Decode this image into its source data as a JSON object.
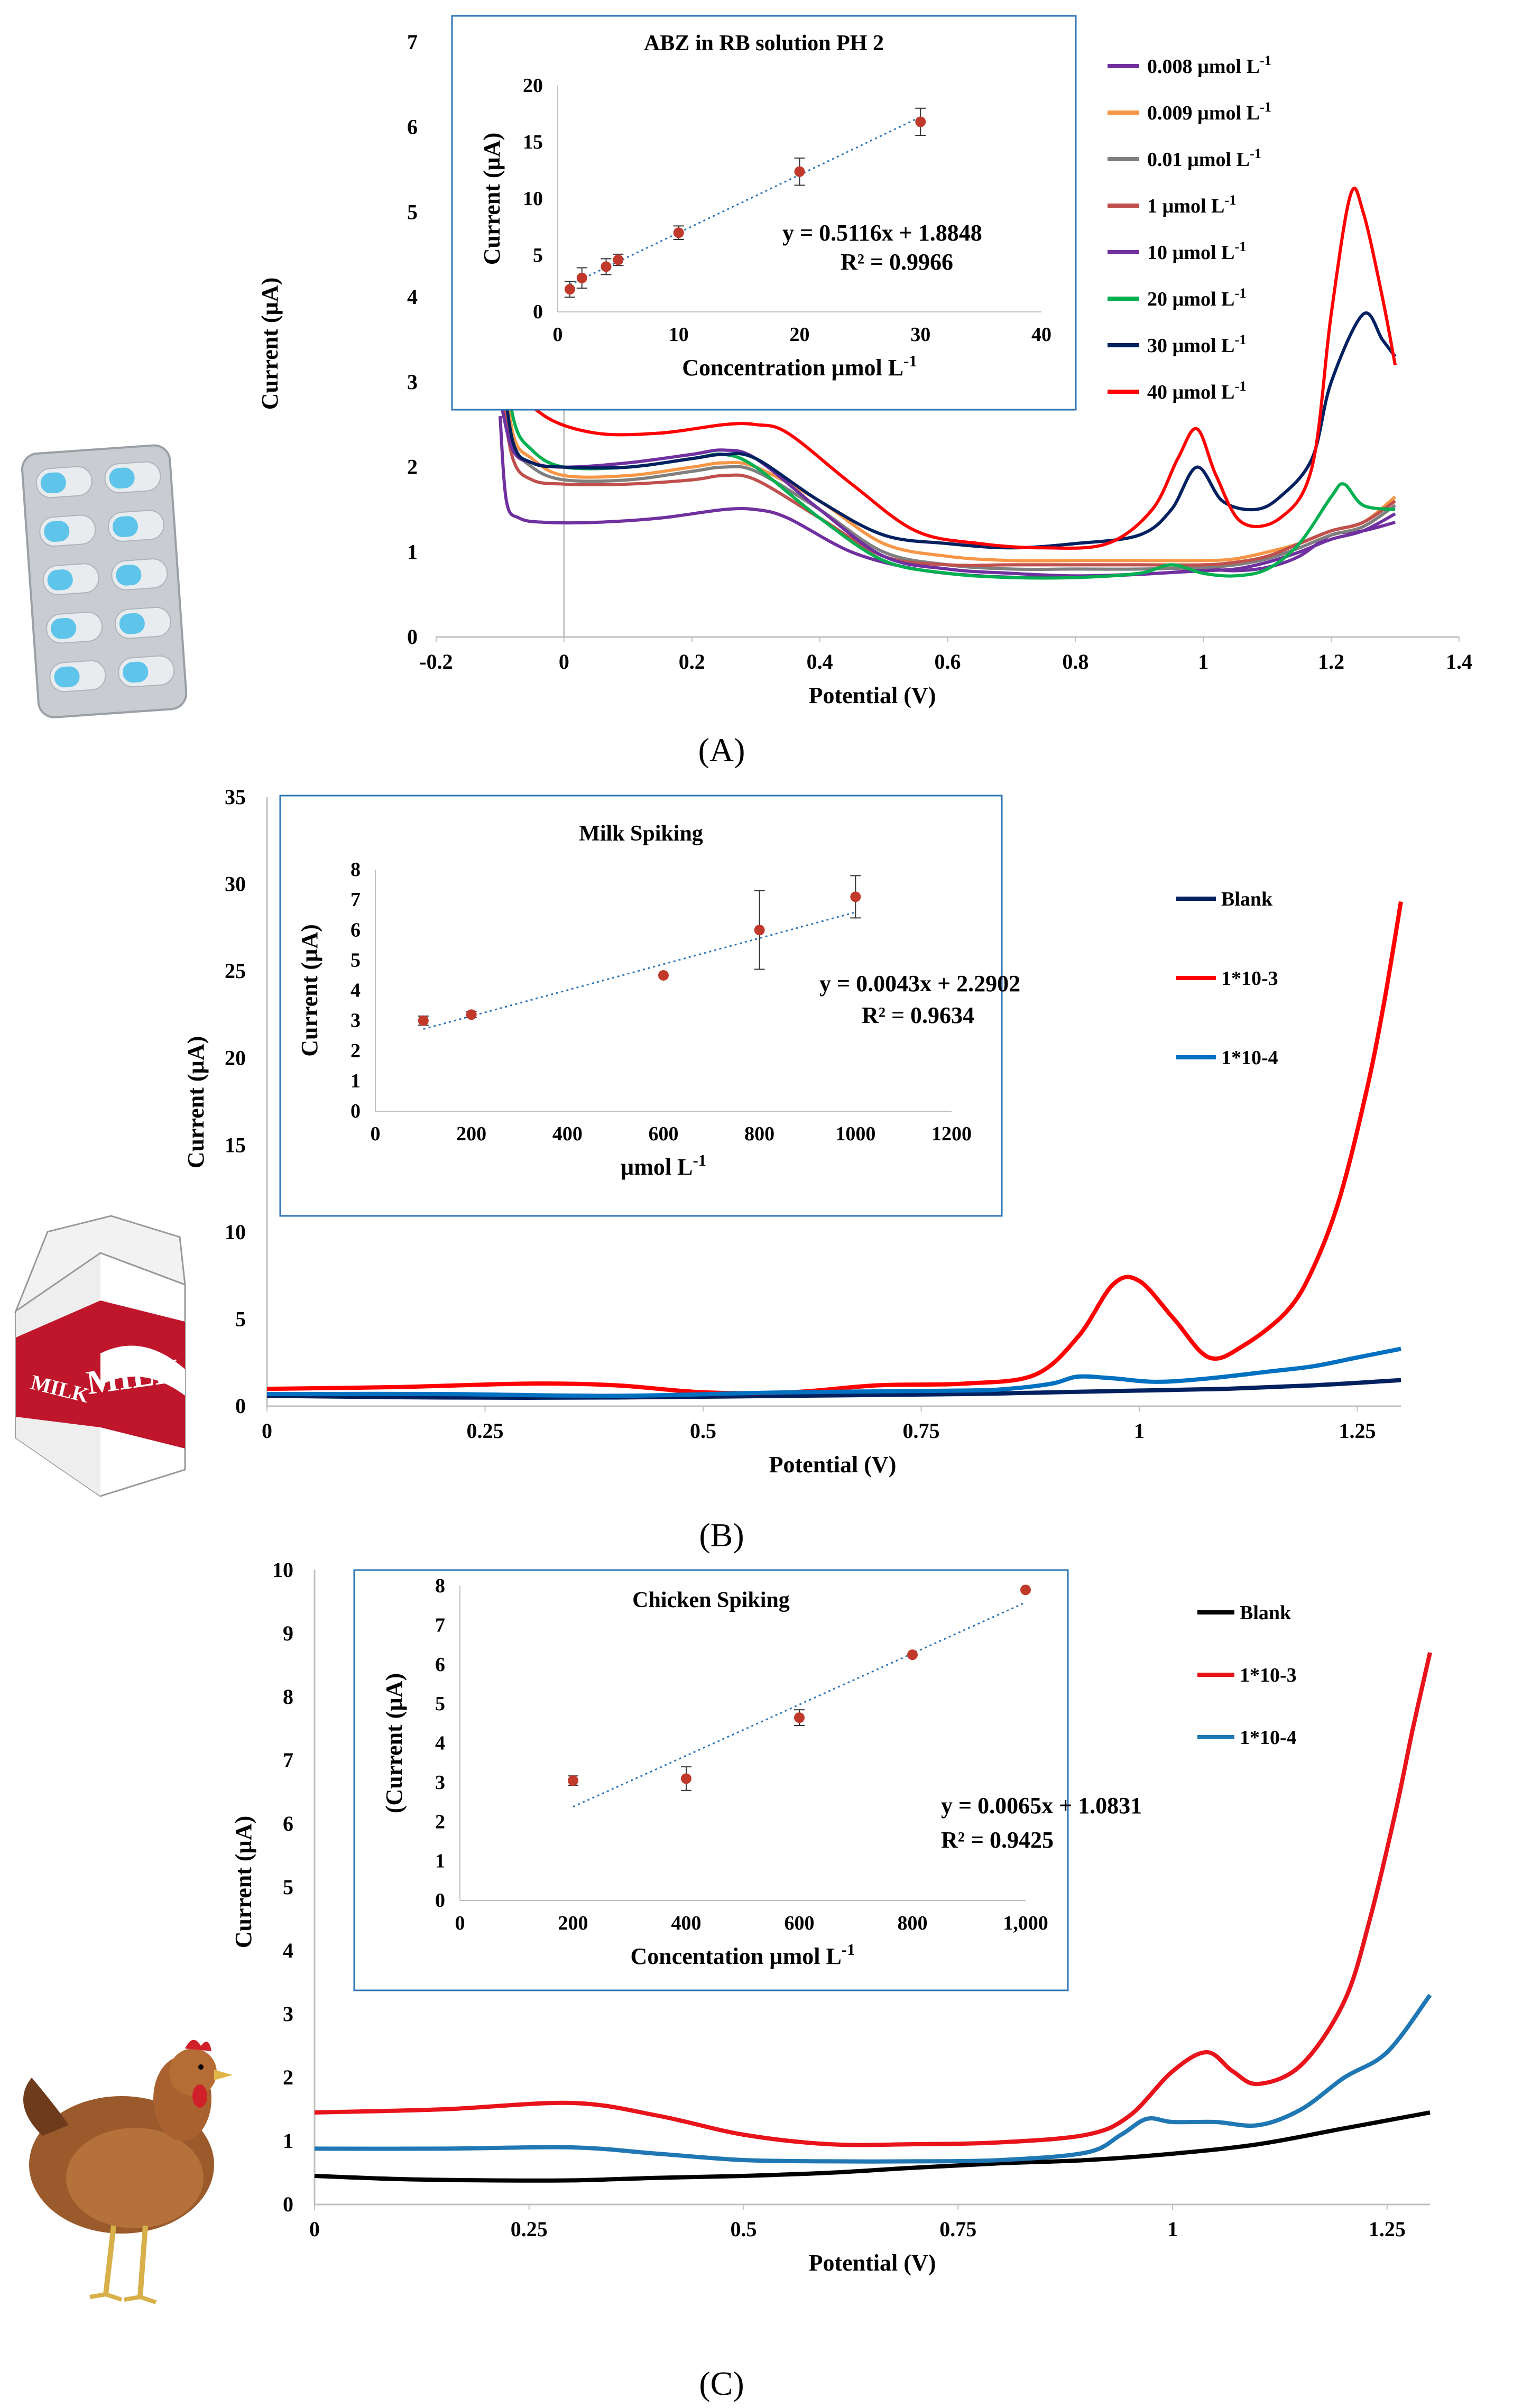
{
  "figure": {
    "captions": [
      "(A)",
      "(B)",
      "(C)"
    ]
  },
  "chart_data": [
    {
      "type": "line",
      "panel": "(A)",
      "xlabel": "Potential (V)",
      "ylabel": "Current (µA)",
      "xlim": [
        -0.2,
        1.4
      ],
      "ylim": [
        0,
        7
      ],
      "xticks": [
        "-0.2",
        "0",
        "0.2",
        "0.4",
        "0.6",
        "0.8",
        "1",
        "1.2",
        "1.4"
      ],
      "yticks": [
        "0",
        "1",
        "2",
        "3",
        "4",
        "5",
        "6",
        "7"
      ],
      "legend_position": "right",
      "series": [
        {
          "name": "0.008 µmol L-1",
          "color": "#7030a0",
          "x": [
            -0.1,
            -0.09,
            -0.07,
            -0.03,
            0.05,
            0.15,
            0.25,
            0.3,
            0.35,
            0.45,
            0.55,
            0.65,
            0.75,
            0.85,
            0.95,
            1.0,
            1.05,
            1.1,
            1.15,
            1.2,
            1.25,
            1.3
          ],
          "y": [
            2.6,
            1.6,
            1.4,
            1.35,
            1.35,
            1.4,
            1.5,
            1.5,
            1.4,
            1.0,
            0.8,
            0.72,
            0.7,
            0.72,
            0.76,
            0.8,
            0.78,
            0.82,
            0.95,
            1.2,
            1.25,
            1.35
          ]
        },
        {
          "name": "0.009 µmol L-1",
          "color": "#f79646",
          "x": [
            -0.1,
            -0.08,
            -0.05,
            0,
            0.1,
            0.2,
            0.25,
            0.3,
            0.4,
            0.5,
            0.6,
            0.7,
            0.8,
            0.9,
            1.0,
            1.05,
            1.1,
            1.15,
            1.2,
            1.25,
            1.3
          ],
          "y": [
            3.6,
            2.4,
            2.1,
            1.9,
            1.9,
            2.0,
            2.05,
            2.0,
            1.6,
            1.1,
            0.95,
            0.9,
            0.9,
            0.9,
            0.9,
            0.92,
            1.0,
            1.1,
            1.25,
            1.35,
            1.65
          ]
        },
        {
          "name": "0.01 µmol L-1",
          "color": "#7f7f7f",
          "x": [
            -0.1,
            -0.08,
            -0.05,
            0,
            0.1,
            0.2,
            0.25,
            0.3,
            0.4,
            0.5,
            0.6,
            0.7,
            0.8,
            0.9,
            1.0,
            1.05,
            1.1,
            1.15,
            1.2,
            1.25,
            1.3
          ],
          "y": [
            3.2,
            2.3,
            2.0,
            1.85,
            1.85,
            1.95,
            2.0,
            1.95,
            1.5,
            1.0,
            0.85,
            0.8,
            0.8,
            0.8,
            0.82,
            0.85,
            0.92,
            1.05,
            1.2,
            1.3,
            1.55
          ]
        },
        {
          "name": "1 µmol L-1",
          "color": "#c0504d",
          "x": [
            -0.1,
            -0.08,
            -0.05,
            0,
            0.1,
            0.2,
            0.25,
            0.3,
            0.4,
            0.5,
            0.6,
            0.7,
            0.8,
            0.9,
            1.0,
            1.05,
            1.1,
            1.15,
            1.2,
            1.25,
            1.3
          ],
          "y": [
            3.0,
            2.1,
            1.85,
            1.8,
            1.8,
            1.85,
            1.9,
            1.85,
            1.4,
            0.95,
            0.85,
            0.85,
            0.85,
            0.85,
            0.85,
            0.88,
            0.95,
            1.1,
            1.25,
            1.35,
            1.6
          ]
        },
        {
          "name": "10 µmol L-1",
          "color": "#7030a0",
          "x": [
            -0.1,
            -0.08,
            -0.05,
            0,
            0.1,
            0.2,
            0.25,
            0.3,
            0.4,
            0.5,
            0.6,
            0.7,
            0.8,
            0.9,
            1.0,
            1.05,
            1.1,
            1.15,
            1.2,
            1.25,
            1.3
          ],
          "y": [
            2.8,
            2.2,
            2.05,
            2.0,
            2.05,
            2.15,
            2.2,
            2.1,
            1.5,
            0.95,
            0.8,
            0.75,
            0.72,
            0.74,
            0.78,
            0.8,
            0.88,
            1.0,
            1.15,
            1.25,
            1.45
          ]
        },
        {
          "name": "20 µmol L-1",
          "color": "#00b050",
          "x": [
            -0.1,
            -0.08,
            -0.05,
            0,
            0.1,
            0.2,
            0.25,
            0.3,
            0.4,
            0.5,
            0.6,
            0.7,
            0.8,
            0.9,
            0.95,
            1.0,
            1.05,
            1.1,
            1.15,
            1.2,
            1.22,
            1.25,
            1.3
          ],
          "y": [
            3.9,
            2.6,
            2.2,
            2.0,
            2.0,
            2.1,
            2.15,
            2.0,
            1.4,
            0.9,
            0.75,
            0.7,
            0.7,
            0.75,
            0.85,
            0.75,
            0.72,
            0.8,
            1.1,
            1.65,
            1.8,
            1.55,
            1.5
          ]
        },
        {
          "name": "30 µmol L-1",
          "color": "#002060",
          "x": [
            -0.1,
            -0.08,
            -0.05,
            0,
            0.1,
            0.2,
            0.25,
            0.3,
            0.4,
            0.5,
            0.6,
            0.7,
            0.8,
            0.9,
            0.95,
            0.99,
            1.03,
            1.08,
            1.12,
            1.17,
            1.2,
            1.25,
            1.28,
            1.3
          ],
          "y": [
            3.4,
            2.3,
            2.05,
            2.0,
            2.0,
            2.1,
            2.15,
            2.1,
            1.6,
            1.2,
            1.1,
            1.05,
            1.1,
            1.2,
            1.5,
            2.0,
            1.6,
            1.5,
            1.65,
            2.1,
            3.0,
            3.8,
            3.5,
            3.3
          ]
        },
        {
          "name": "40 µmol L-1",
          "color": "#ff0000",
          "x": [
            -0.1,
            -0.09,
            -0.07,
            -0.03,
            0.05,
            0.15,
            0.25,
            0.3,
            0.35,
            0.45,
            0.55,
            0.65,
            0.75,
            0.85,
            0.92,
            0.96,
            0.99,
            1.02,
            1.06,
            1.12,
            1.17,
            1.2,
            1.23,
            1.25,
            1.28,
            1.3
          ],
          "y": [
            6.1,
            4.0,
            3.0,
            2.6,
            2.4,
            2.4,
            2.5,
            2.5,
            2.4,
            1.8,
            1.25,
            1.1,
            1.05,
            1.1,
            1.5,
            2.1,
            2.45,
            1.9,
            1.35,
            1.4,
            2.0,
            3.8,
            5.2,
            5.0,
            4.0,
            3.2
          ]
        }
      ],
      "inset": {
        "title": "ABZ in RB solution PH 2",
        "xlabel": "Concentration µmol L-1",
        "ylabel": "Current (µA)",
        "xlim": [
          0,
          40
        ],
        "ylim": [
          0,
          20
        ],
        "xticks": [
          "0",
          "10",
          "20",
          "30",
          "40"
        ],
        "yticks": [
          "0",
          "5",
          "10",
          "15",
          "20"
        ],
        "points": {
          "x": [
            1,
            2,
            4,
            5,
            10,
            20,
            30
          ],
          "y": [
            2.0,
            3.0,
            4.0,
            4.6,
            7.0,
            12.4,
            16.8
          ],
          "err": [
            0.7,
            0.9,
            0.7,
            0.5,
            0.6,
            1.2,
            1.2
          ]
        },
        "point_color": "#c0392b",
        "trendline": {
          "slope": 0.5116,
          "intercept": 1.8848
        },
        "equation": "y = 0.5116x + 1.8848",
        "r2": "R² = 0.9966"
      }
    },
    {
      "type": "line",
      "panel": "(B)",
      "xlabel": "Potential (V)",
      "ylabel": "Current (µA)",
      "xlim": [
        0,
        1.3
      ],
      "ylim": [
        0,
        35
      ],
      "xticks": [
        "0",
        "0.25",
        "0.5",
        "0.75",
        "1",
        "1.25"
      ],
      "yticks": [
        "0",
        "5",
        "10",
        "15",
        "20",
        "25",
        "30",
        "35"
      ],
      "legend_position": "right",
      "series": [
        {
          "name": "Blank",
          "color": "#002060",
          "x": [
            0,
            0.2,
            0.4,
            0.6,
            0.8,
            0.9,
            1.0,
            1.1,
            1.2,
            1.3
          ],
          "y": [
            0.6,
            0.5,
            0.5,
            0.6,
            0.7,
            0.8,
            0.9,
            1.0,
            1.2,
            1.5
          ]
        },
        {
          "name": "1*10-3",
          "color": "#ff0000",
          "x": [
            0,
            0.15,
            0.3,
            0.4,
            0.5,
            0.6,
            0.7,
            0.8,
            0.88,
            0.93,
            0.97,
            1.0,
            1.04,
            1.08,
            1.12,
            1.17,
            1.2,
            1.23,
            1.26,
            1.28,
            1.3
          ],
          "y": [
            1.0,
            1.1,
            1.3,
            1.2,
            0.8,
            0.8,
            1.2,
            1.3,
            1.8,
            4.0,
            7.0,
            7.2,
            5.0,
            2.8,
            3.5,
            5.5,
            8.0,
            12.0,
            18.0,
            23.0,
            29.0
          ]
        },
        {
          "name": "1*10-4",
          "color": "#0070c0",
          "x": [
            0,
            0.2,
            0.4,
            0.6,
            0.8,
            0.85,
            0.9,
            0.93,
            0.97,
            1.02,
            1.08,
            1.15,
            1.2,
            1.25,
            1.3
          ],
          "y": [
            0.7,
            0.7,
            0.6,
            0.8,
            0.9,
            1.0,
            1.3,
            1.7,
            1.6,
            1.4,
            1.6,
            2.0,
            2.3,
            2.8,
            3.3
          ]
        }
      ],
      "inset": {
        "title": "Milk Spiking",
        "xlabel": "µmol L-1",
        "ylabel": "Current (µA)",
        "xlim": [
          0,
          1200
        ],
        "ylim": [
          0,
          8
        ],
        "xticks": [
          "0",
          "200",
          "400",
          "600",
          "800",
          "1000",
          "1200"
        ],
        "yticks": [
          "0",
          "1",
          "2",
          "3",
          "4",
          "5",
          "6",
          "7",
          "8"
        ],
        "points": {
          "x": [
            100,
            200,
            600,
            800,
            1000
          ],
          "y": [
            3.0,
            3.2,
            4.5,
            6.0,
            7.1
          ],
          "err": [
            0.15,
            0.1,
            0,
            1.3,
            0.7
          ]
        },
        "point_color": "#c0392b",
        "trendline": {
          "slope": 0.0043,
          "intercept": 2.2902
        },
        "equation": "y = 0.0043x + 2.2902",
        "r2": "R² = 0.9634"
      }
    },
    {
      "type": "line",
      "panel": "(C)",
      "xlabel": "Potential (V)",
      "ylabel": "Current (µA)",
      "xlim": [
        0,
        1.3
      ],
      "ylim": [
        0,
        10
      ],
      "xticks": [
        "0",
        "0.25",
        "0.5",
        "0.75",
        "1",
        "1.25"
      ],
      "yticks": [
        "0",
        "1",
        "2",
        "3",
        "4",
        "5",
        "6",
        "7",
        "8",
        "9",
        "10"
      ],
      "legend_position": "right",
      "series": [
        {
          "name": "Blank",
          "color": "#000000",
          "x": [
            0,
            0.1,
            0.2,
            0.3,
            0.4,
            0.5,
            0.6,
            0.7,
            0.8,
            0.9,
            1.0,
            1.1,
            1.2,
            1.3
          ],
          "y": [
            0.45,
            0.4,
            0.38,
            0.38,
            0.42,
            0.45,
            0.5,
            0.58,
            0.65,
            0.7,
            0.8,
            0.95,
            1.2,
            1.45
          ]
        },
        {
          "name": "1*10-3",
          "color": "#e8131b",
          "x": [
            0,
            0.15,
            0.3,
            0.4,
            0.5,
            0.6,
            0.7,
            0.8,
            0.9,
            0.95,
            1.0,
            1.04,
            1.07,
            1.1,
            1.15,
            1.2,
            1.23,
            1.26,
            1.28,
            1.3
          ],
          "y": [
            1.45,
            1.5,
            1.6,
            1.4,
            1.1,
            0.95,
            0.95,
            0.98,
            1.1,
            1.4,
            2.1,
            2.4,
            2.1,
            1.9,
            2.2,
            3.2,
            4.5,
            6.2,
            7.5,
            8.7
          ]
        },
        {
          "name": "1*10-4",
          "color": "#1f77b4",
          "x": [
            0,
            0.15,
            0.3,
            0.4,
            0.5,
            0.6,
            0.7,
            0.8,
            0.9,
            0.94,
            0.97,
            1.0,
            1.05,
            1.1,
            1.15,
            1.2,
            1.25,
            1.3
          ],
          "y": [
            0.88,
            0.88,
            0.9,
            0.8,
            0.7,
            0.68,
            0.68,
            0.7,
            0.82,
            1.1,
            1.35,
            1.3,
            1.3,
            1.25,
            1.5,
            2.0,
            2.4,
            3.3
          ]
        }
      ],
      "inset": {
        "title": "Chicken Spiking",
        "xlabel": "Concentation µmol L-1",
        "ylabel": "(Current (µA)",
        "xlim": [
          0,
          1000
        ],
        "ylim": [
          0,
          8
        ],
        "xticks": [
          "0",
          "200",
          "400",
          "600",
          "800",
          "1,000"
        ],
        "yticks": [
          "0",
          "1",
          "2",
          "3",
          "4",
          "5",
          "6",
          "7",
          "8"
        ],
        "points": {
          "x": [
            200,
            400,
            600,
            800,
            1000
          ],
          "y": [
            3.05,
            3.1,
            4.65,
            6.25,
            7.9
          ],
          "err": [
            0.12,
            0.3,
            0.2,
            0,
            0
          ]
        },
        "point_color": "#c0392b",
        "trendline": {
          "slope": 0.0065,
          "intercept": 1.0831
        },
        "equation": "y = 0.0065x + 1.0831",
        "r2": "R² = 0.9425"
      }
    }
  ],
  "decor": {
    "panel_a_image": "pill-blister-pack",
    "panel_b_image": "milk-carton",
    "panel_b_image_text": "MILK",
    "panel_c_image": "hen",
    "colors": {
      "inset_border": "#2e75b6",
      "trendline": "#2e75b6"
    }
  }
}
